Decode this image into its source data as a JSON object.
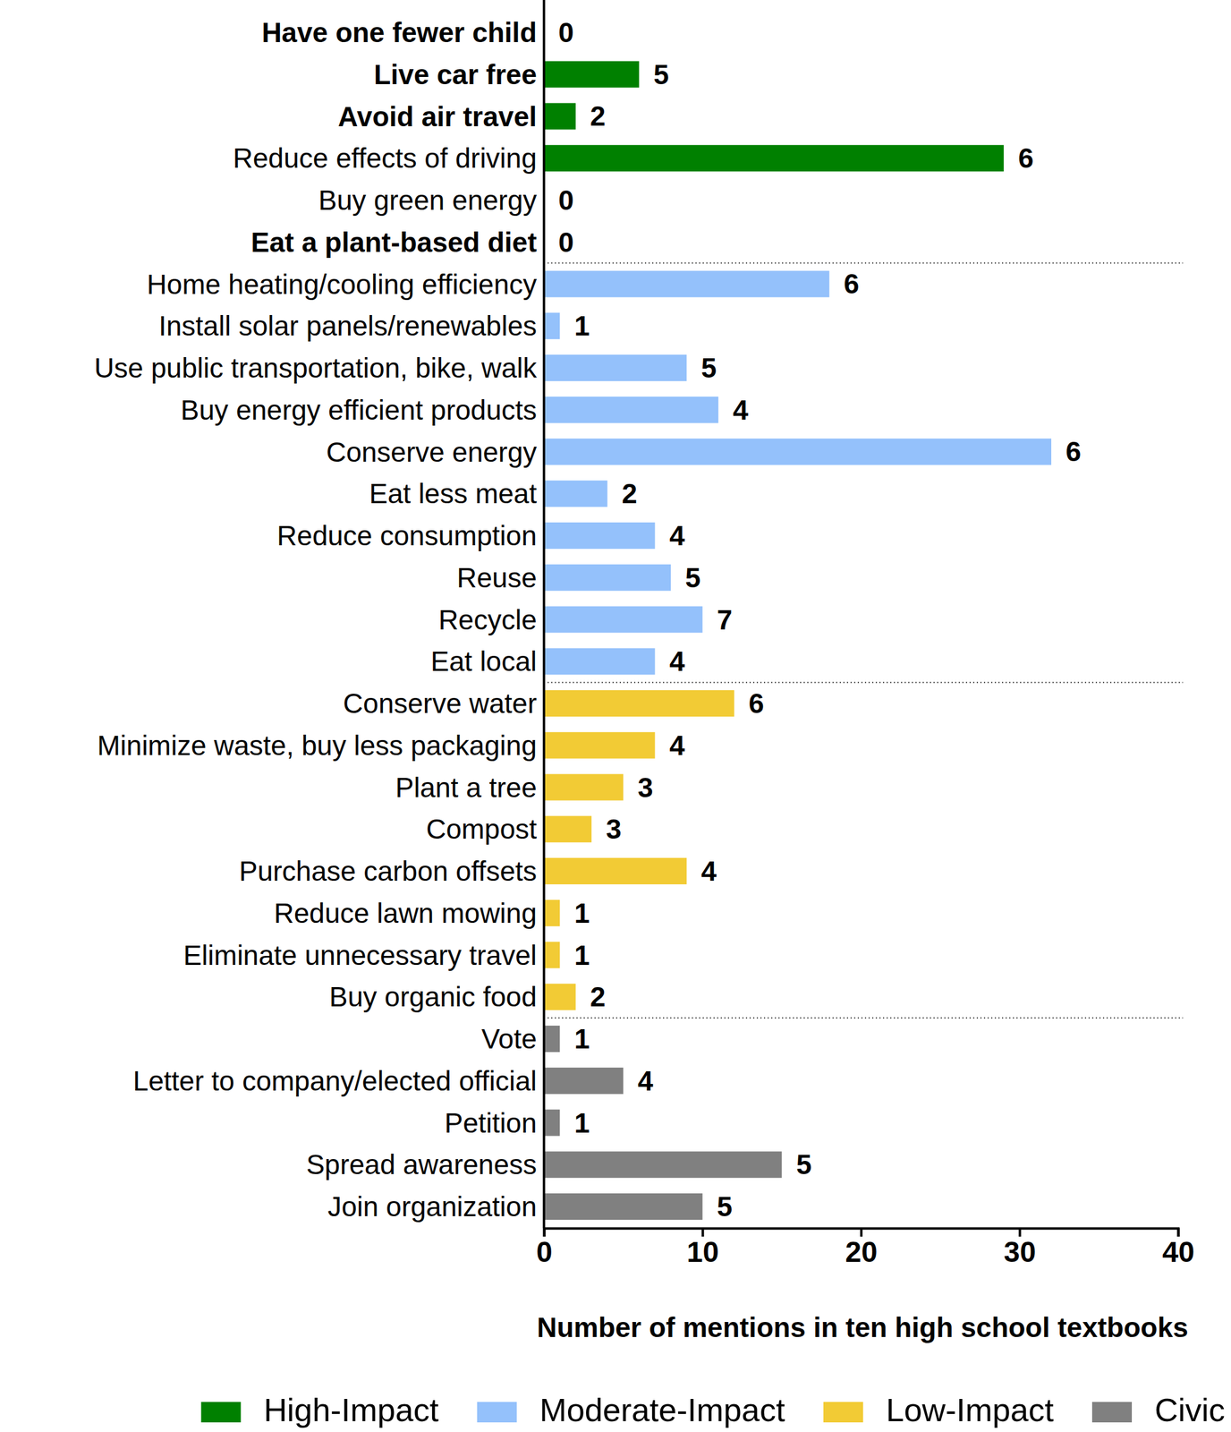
{
  "chart_data": {
    "type": "bar",
    "orientation": "horizontal",
    "x_label": "Number of mentions in ten high school textbooks",
    "categories": [
      "Have one fewer child",
      "Live car free",
      "Avoid air travel",
      "Reduce effects of driving",
      "Buy green energy",
      "Eat a plant-based diet",
      "Home heating/cooling efficiency",
      "Install solar panels/renewables",
      "Use public transportation, bike, walk",
      "Buy energy efficient products",
      "Conserve energy",
      "Eat less meat",
      "Reduce consumption",
      "Reuse",
      "Recycle",
      "Eat local",
      "Conserve water",
      "Minimize waste, buy less packaging",
      "Plant a tree",
      "Compost",
      "Purchase carbon offsets",
      "Reduce lawn mowing",
      "Eliminate unnecessary travel",
      "Buy organic food",
      "Vote",
      "Letter to company/elected official",
      "Petition",
      "Spread awareness",
      "Join organization"
    ],
    "series": [
      {
        "name": "High-Impact",
        "color": "#008000",
        "values": [
          0,
          6,
          2,
          29,
          0,
          0,
          null,
          null,
          null,
          null,
          null,
          null,
          null,
          null,
          null,
          null,
          null,
          null,
          null,
          null,
          null,
          null,
          null,
          null,
          null,
          null,
          null,
          null,
          null
        ],
        "textbooks": [
          0,
          5,
          2,
          6,
          0,
          0,
          null,
          null,
          null,
          null,
          null,
          null,
          null,
          null,
          null,
          null,
          null,
          null,
          null,
          null,
          null,
          null,
          null,
          null,
          null,
          null,
          null,
          null,
          null
        ]
      },
      {
        "name": "Moderate-Impact",
        "color": "#94c1fb",
        "values": [
          null,
          null,
          null,
          null,
          null,
          null,
          18,
          1,
          9,
          11,
          32,
          4,
          7,
          8,
          10,
          7,
          null,
          null,
          null,
          null,
          null,
          null,
          null,
          null,
          null,
          null,
          null,
          null,
          null
        ],
        "textbooks": [
          null,
          null,
          null,
          null,
          null,
          null,
          6,
          1,
          5,
          4,
          6,
          2,
          4,
          5,
          7,
          4,
          null,
          null,
          null,
          null,
          null,
          null,
          null,
          null,
          null,
          null,
          null,
          null,
          null
        ]
      },
      {
        "name": "Low-Impact",
        "color": "#f2cb35",
        "values": [
          null,
          null,
          null,
          null,
          null,
          null,
          null,
          null,
          null,
          null,
          null,
          null,
          null,
          null,
          null,
          null,
          12,
          7,
          5,
          3,
          9,
          1,
          1,
          2,
          null,
          null,
          null,
          null,
          null
        ],
        "textbooks": [
          null,
          null,
          null,
          null,
          null,
          null,
          null,
          null,
          null,
          null,
          null,
          null,
          null,
          null,
          null,
          null,
          6,
          4,
          3,
          3,
          4,
          1,
          1,
          2,
          null,
          null,
          null,
          null,
          null
        ]
      },
      {
        "name": "Civic",
        "color": "#808080",
        "values": [
          null,
          null,
          null,
          null,
          null,
          null,
          null,
          null,
          null,
          null,
          null,
          null,
          null,
          null,
          null,
          null,
          null,
          null,
          null,
          null,
          null,
          null,
          null,
          null,
          1,
          5,
          1,
          15,
          10
        ],
        "textbooks": [
          null,
          null,
          null,
          null,
          null,
          null,
          null,
          null,
          null,
          null,
          null,
          null,
          null,
          null,
          null,
          null,
          null,
          null,
          null,
          null,
          null,
          null,
          null,
          null,
          1,
          4,
          1,
          5,
          5
        ]
      }
    ],
    "xlim": [
      0,
      40
    ],
    "xticks": [
      0,
      10,
      20,
      30,
      40
    ],
    "grid": false,
    "legend": "bottom"
  }
}
